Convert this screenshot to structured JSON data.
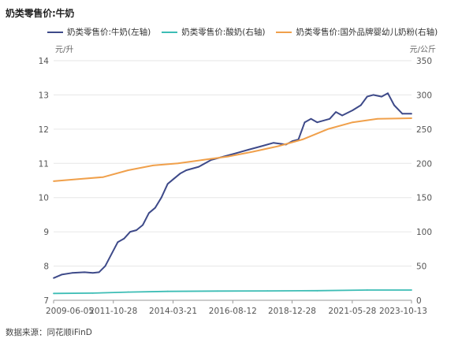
{
  "chart_data": {
    "type": "line",
    "title": "奶类零售价:牛奶",
    "source": "数据来源：同花顺iFinD",
    "left_unit": "元/升",
    "right_unit": "元/公斤",
    "left_ylim": [
      7,
      14
    ],
    "right_ylim": [
      0,
      350
    ],
    "left_ticks": [
      "7",
      "8",
      "9",
      "10",
      "11",
      "12",
      "13",
      "14"
    ],
    "right_ticks": [
      "0",
      "50",
      "100",
      "150",
      "200",
      "250",
      "300",
      "350"
    ],
    "xlim": [
      "2009-06-05",
      "2023-10-13"
    ],
    "x_ticks": [
      "2009-06-05",
      "2011-10-28",
      "2014-03-21",
      "2016-08-12",
      "2018-12-28",
      "2021-05-28",
      "2023-10-13"
    ],
    "grid": "horizontal",
    "legend_position": "top",
    "series": [
      {
        "name": "奶类零售价:牛奶(左轴)",
        "axis": "left",
        "color": "#3e4a89",
        "points": [
          [
            "2009-06-05",
            7.65
          ],
          [
            "2009-10-01",
            7.75
          ],
          [
            "2010-03-01",
            7.8
          ],
          [
            "2010-09-01",
            7.82
          ],
          [
            "2011-01-01",
            7.8
          ],
          [
            "2011-04-01",
            7.82
          ],
          [
            "2011-07-01",
            8.0
          ],
          [
            "2011-10-01",
            8.35
          ],
          [
            "2012-01-01",
            8.7
          ],
          [
            "2012-04-01",
            8.8
          ],
          [
            "2012-07-01",
            9.0
          ],
          [
            "2012-10-01",
            9.05
          ],
          [
            "2013-01-01",
            9.2
          ],
          [
            "2013-04-01",
            9.55
          ],
          [
            "2013-07-01",
            9.7
          ],
          [
            "2013-10-01",
            10.0
          ],
          [
            "2014-01-01",
            10.4
          ],
          [
            "2014-04-01",
            10.55
          ],
          [
            "2014-07-01",
            10.7
          ],
          [
            "2014-10-01",
            10.8
          ],
          [
            "2015-04-01",
            10.9
          ],
          [
            "2015-07-01",
            11.0
          ],
          [
            "2015-10-01",
            11.1
          ],
          [
            "2016-04-01",
            11.2
          ],
          [
            "2016-10-01",
            11.3
          ],
          [
            "2017-04-01",
            11.4
          ],
          [
            "2017-10-01",
            11.5
          ],
          [
            "2018-04-01",
            11.6
          ],
          [
            "2018-10-01",
            11.55
          ],
          [
            "2019-01-01",
            11.65
          ],
          [
            "2019-04-01",
            11.7
          ],
          [
            "2019-07-01",
            12.2
          ],
          [
            "2019-10-01",
            12.3
          ],
          [
            "2020-01-01",
            12.2
          ],
          [
            "2020-07-01",
            12.3
          ],
          [
            "2020-10-01",
            12.5
          ],
          [
            "2021-01-01",
            12.4
          ],
          [
            "2021-06-01",
            12.55
          ],
          [
            "2021-10-01",
            12.7
          ],
          [
            "2022-01-01",
            12.95
          ],
          [
            "2022-04-01",
            13.0
          ],
          [
            "2022-08-01",
            12.95
          ],
          [
            "2022-11-01",
            13.05
          ],
          [
            "2023-02-01",
            12.7
          ],
          [
            "2023-06-01",
            12.45
          ],
          [
            "2023-10-13",
            12.45
          ]
        ]
      },
      {
        "name": "奶类零售价:酸奶(右轴)",
        "axis": "right",
        "color": "#3dbdb5",
        "points": [
          [
            "2009-06-05",
            10
          ],
          [
            "2011-01-01",
            10.5
          ],
          [
            "2012-06-01",
            12
          ],
          [
            "2014-01-01",
            13
          ],
          [
            "2016-01-01",
            13.5
          ],
          [
            "2018-01-01",
            13.7
          ],
          [
            "2020-01-01",
            14
          ],
          [
            "2022-01-01",
            15
          ],
          [
            "2023-10-13",
            15
          ]
        ]
      },
      {
        "name": "奶类零售价:国外品牌婴幼儿奶粉(右轴)",
        "axis": "right",
        "color": "#f0a04b",
        "points": [
          [
            "2009-06-05",
            174
          ],
          [
            "2010-06-01",
            177
          ],
          [
            "2011-06-01",
            180
          ],
          [
            "2012-06-01",
            190
          ],
          [
            "2013-06-01",
            197
          ],
          [
            "2014-06-01",
            200
          ],
          [
            "2015-06-01",
            205
          ],
          [
            "2016-06-01",
            210
          ],
          [
            "2017-06-01",
            217
          ],
          [
            "2018-06-01",
            225
          ],
          [
            "2019-06-01",
            235
          ],
          [
            "2020-06-01",
            250
          ],
          [
            "2021-06-01",
            260
          ],
          [
            "2022-06-01",
            265
          ],
          [
            "2023-10-13",
            266
          ]
        ]
      }
    ]
  }
}
